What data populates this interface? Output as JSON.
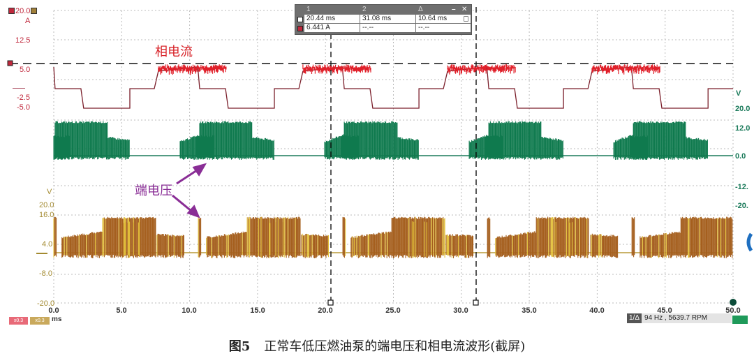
{
  "scope": {
    "left_axis_current": {
      "unit": "A",
      "ticks": [
        "20.0",
        "12.5",
        "5.0",
        "-2.5",
        "-5.0"
      ],
      "color": "#c0283c"
    },
    "right_axis_green": {
      "unit": "V",
      "ticks": [
        "20.0",
        "12.0",
        "0.0",
        "-12.",
        "-20."
      ],
      "color": "#1a7a5a"
    },
    "left_axis_voltage": {
      "unit": "V",
      "ticks": [
        "20.0",
        "16.0",
        "4.0",
        "-8.0",
        "-20.0"
      ],
      "color": "#a38a30"
    },
    "x_axis": {
      "unit": "ms",
      "ticks": [
        "0.0",
        "5.0",
        "10.0",
        "15.0",
        "20.0",
        "25.0",
        "30.0",
        "35.0",
        "40.0",
        "45.0",
        "50.0"
      ]
    },
    "channel_chips": [
      {
        "label": "x0.3",
        "color": "#e86a78"
      },
      {
        "label": "x0.3",
        "color": "#c9a95c"
      }
    ],
    "measurement_table": {
      "headers": [
        "1",
        "2",
        "Δ"
      ],
      "rows": [
        {
          "marker_color": "#ffffff",
          "values": [
            "20.44 ms",
            "31.08 ms",
            "10.64 ms"
          ]
        },
        {
          "marker_color": "#c0283c",
          "values": [
            "6.441 A",
            "--.--",
            "--.--"
          ]
        }
      ],
      "minimize_label": "–",
      "close_label": "✕",
      "lock_icon": "lock-icon"
    },
    "frequency_readout": {
      "tag": "1/Δ",
      "value": "94 Hz , 5639.7 RPM"
    },
    "annotations": {
      "phase_current": "相电流",
      "terminal_voltage": "端电压"
    },
    "cursors": {
      "cursor1_ms": 20.44,
      "cursor2_ms": 31.08,
      "level_A": 6.441
    }
  },
  "caption": {
    "figure": "图5",
    "text": "正常车低压燃油泵的端电压和相电流波形(截屏)"
  }
}
